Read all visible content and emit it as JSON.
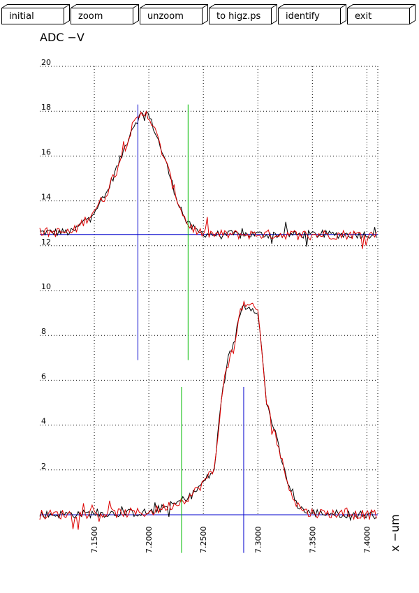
{
  "toolbar": {
    "buttons": [
      {
        "label": "initial"
      },
      {
        "label": "zoom"
      },
      {
        "label": "unzoom"
      },
      {
        "label": "to higz.ps"
      },
      {
        "label": "identify"
      },
      {
        "label": "exit"
      }
    ]
  },
  "chart_data": {
    "type": "line",
    "ylabel": "ADC  −V",
    "xlabel": "x  −um",
    "xlim": [
      7100,
      7410
    ],
    "ylim": [
      0,
      20
    ],
    "x_ticks": [
      "7.1500",
      "7.2000",
      "7.2500",
      "7.3000",
      "7.3500",
      "7.4000"
    ],
    "y_ticks": [
      "2",
      "4",
      "6",
      "8",
      "10",
      "12",
      "14",
      "16",
      "18",
      "20"
    ],
    "grid": true,
    "colors": {
      "grid": "#000000",
      "trace_a": "#000000",
      "trace_b": "#dd0000",
      "baseline": "#0000cc",
      "marker_center": "#0000cc",
      "marker_edge": "#00bb00"
    },
    "series": [
      {
        "values_desc": "upper profile (black & red traces)",
        "x": [
          7100,
          7130,
          7145,
          7160,
          7175,
          7185,
          7192,
          7198,
          7205,
          7215,
          7225,
          7235,
          7245,
          7260,
          7300,
          7350,
          7410
        ],
        "y": [
          12.6,
          12.6,
          13.3,
          14.2,
          16.0,
          17.3,
          17.8,
          18.0,
          17.2,
          15.8,
          14.2,
          13.0,
          12.6,
          12.5,
          12.5,
          12.5,
          12.5
        ]
      },
      {
        "values_desc": "lower profile (black & red traces)",
        "x": [
          7100,
          7200,
          7225,
          7240,
          7260,
          7268,
          7278,
          7285,
          7292,
          7300,
          7308,
          7315,
          7325,
          7335,
          7345,
          7400,
          7410
        ],
        "y": [
          0.0,
          0.1,
          0.5,
          0.9,
          2.0,
          5.8,
          7.6,
          9.3,
          9.3,
          9.1,
          5.0,
          3.8,
          1.8,
          0.5,
          0.1,
          0.0,
          0.0
        ]
      }
    ],
    "baselines": [
      12.5,
      0.0
    ],
    "markers": [
      {
        "kind": "center",
        "x": 7190,
        "y_from": 6.9,
        "y_to": 18.3
      },
      {
        "kind": "edge",
        "x": 7236,
        "y_from": 6.9,
        "y_to": 18.3
      },
      {
        "kind": "center",
        "x": 7287,
        "y_from": -1.7,
        "y_to": 5.7
      },
      {
        "kind": "edge",
        "x": 7230,
        "y_from": -1.7,
        "y_to": 5.7
      }
    ]
  }
}
